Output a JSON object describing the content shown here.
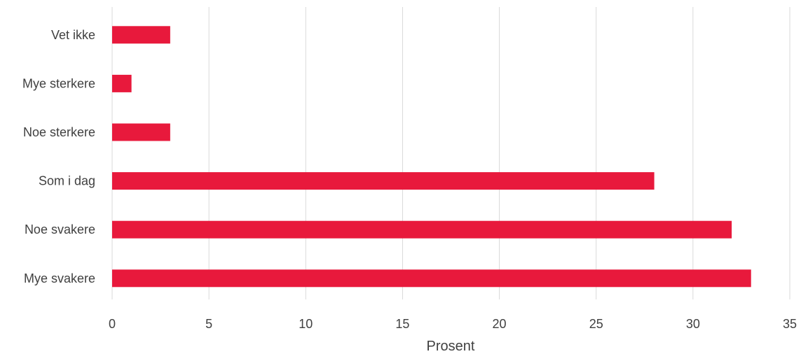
{
  "chart_data": {
    "type": "bar",
    "orientation": "horizontal",
    "categories": [
      "Vet ikke",
      "Mye sterkere",
      "Noe sterkere",
      "Som i dag",
      "Noe svakere",
      "Mye svakere"
    ],
    "values": [
      3,
      1,
      3,
      28,
      32,
      33
    ],
    "xlabel": "Prosent",
    "xlim": [
      0,
      35
    ],
    "xticks": [
      "0",
      "5",
      "10",
      "15",
      "20",
      "25",
      "30",
      "35"
    ],
    "grid": true,
    "bar_color": "#e8193c"
  }
}
